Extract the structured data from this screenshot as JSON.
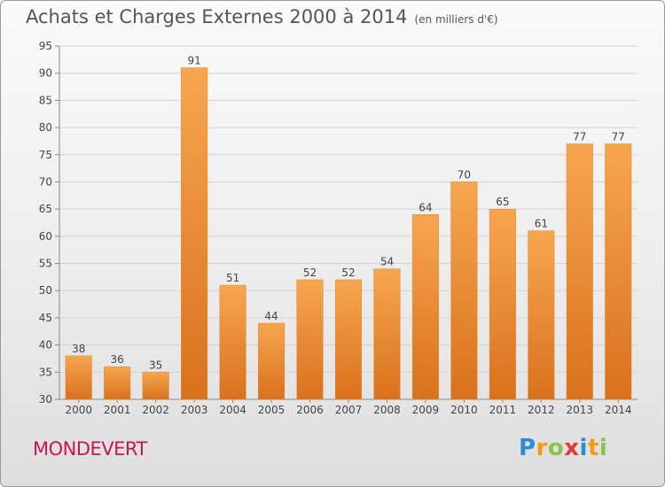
{
  "title": "Achats et Charges Externes 2000 à 2014",
  "subtitle": "(en milliers d'€)",
  "commune": "MONDEVERT",
  "logo": {
    "letters": [
      "P",
      "r",
      "o",
      "x",
      "i",
      "t",
      "i"
    ],
    "colors": [
      "#2e8bd6",
      "#f39c12",
      "#8bc34a",
      "#e53935",
      "#2e8bd6",
      "#f39c12",
      "#8bc34a"
    ]
  },
  "chart_data": {
    "type": "bar",
    "categories": [
      "2000",
      "2001",
      "2002",
      "2003",
      "2004",
      "2005",
      "2006",
      "2007",
      "2008",
      "2009",
      "2010",
      "2011",
      "2012",
      "2013",
      "2014"
    ],
    "values": [
      38,
      36,
      35,
      91,
      51,
      44,
      52,
      52,
      54,
      64,
      70,
      65,
      61,
      77,
      77
    ],
    "ylim": [
      30,
      95
    ],
    "yticks": [
      30,
      35,
      40,
      45,
      50,
      55,
      60,
      65,
      70,
      75,
      80,
      85,
      90,
      95
    ],
    "grid": true,
    "bar_color": "#f08a28"
  }
}
